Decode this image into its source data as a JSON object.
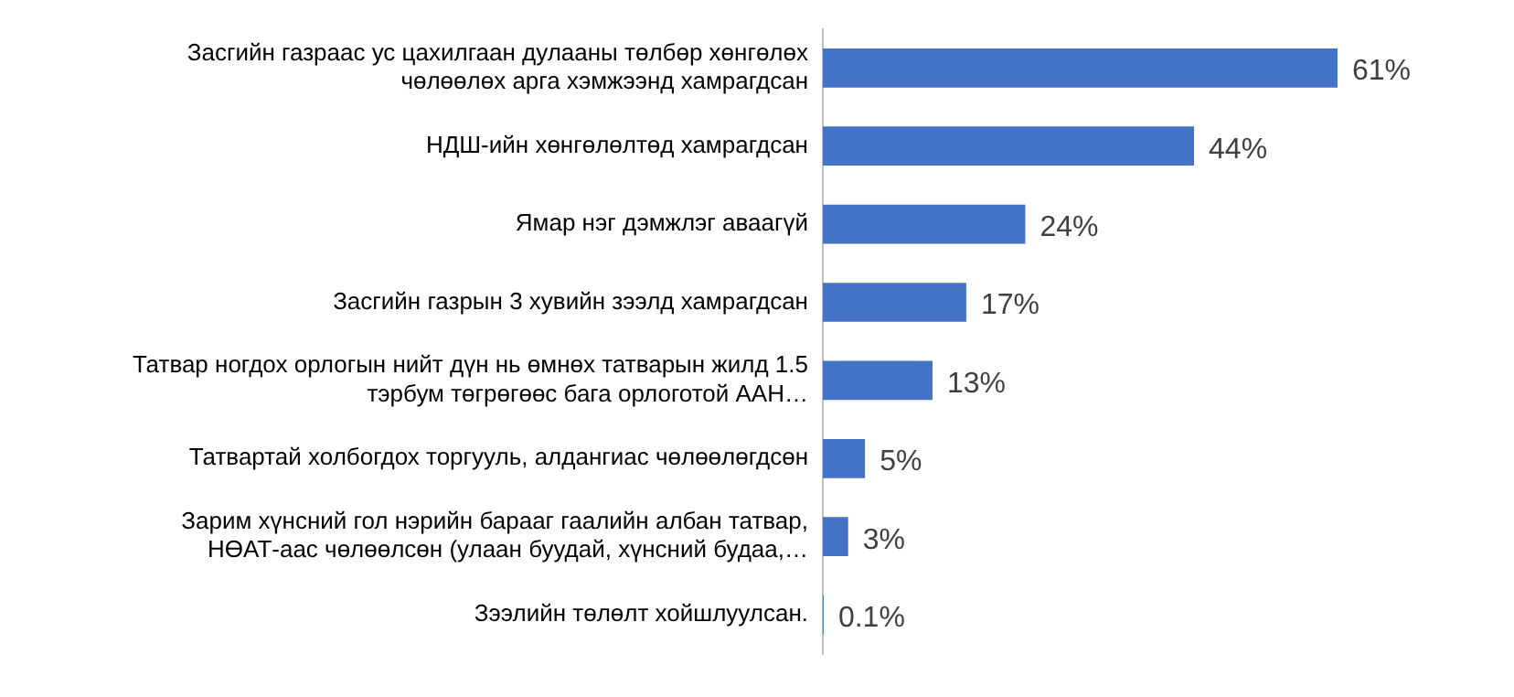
{
  "chart_data": {
    "type": "bar",
    "orientation": "horizontal",
    "categories": [
      "Засгийн газраас ус цахилгаан дулааны төлбөр хөнгөлөх чөлөөлөх арга хэмжээнд хамрагдсан",
      "НДШ-ийн хөнгөлөлтөд хамрагдсан",
      "Ямар нэг дэмжлэг аваагүй",
      "Засгийн газрын 3 хувийн зээлд хамрагдсан",
      "Татвар ногдох орлогын нийт дүн нь өмнөх татварын жилд 1.5 тэрбум төгрөгөөс бага орлоготой ААН…",
      "Татвартай холбогдох торгууль, алдангиас чөлөөлөгдсөн",
      "Зарим хүнсний гол нэрийн барааг гаалийн албан татвар, НӨАТ-аас чөлөөлсөн (улаан буудай, хүнсний будаа,…",
      "Зээлийн төлөлт хойшлуулсан."
    ],
    "values": [
      61,
      44,
      24,
      17,
      13,
      5,
      3,
      0.1
    ],
    "value_labels": [
      "61%",
      "44%",
      "24%",
      "17%",
      "13%",
      "5%",
      "3%",
      "0.1%"
    ],
    "color": "#4472c4",
    "tick_labels": "y"
  }
}
